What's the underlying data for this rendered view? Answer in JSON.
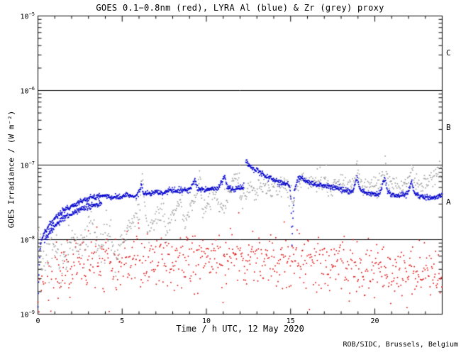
{
  "title": "GOES 0.1−0.8nm (red), LYRA Al (blue) & Zr (grey) proxy",
  "footer": "ROB/SIDC, Brussels, Belgium",
  "colors": {
    "goes_red": "#dd0000",
    "lyra_al_blue": "#0000cc",
    "lyra_zr_grey": "#9a9a9a",
    "frame": "#000000",
    "background": "#ffffff"
  },
  "chart_data": {
    "type": "scatter",
    "title": "GOES 0.1−0.8nm (red), LYRA Al (blue) & Zr (grey) proxy",
    "xlabel": "Time / h UTC, 12 May 2020",
    "ylabel": "GOES Irradiance / (W m⁻²)",
    "x_range_hours": [
      0,
      24
    ],
    "y_log10_range": [
      -9,
      -5
    ],
    "grid": false,
    "x_major_ticks": [
      0,
      5,
      10,
      15,
      20
    ],
    "x_minor_step_hours": 1,
    "y_tick_labels": [
      {
        "mantissa": "10",
        "exp": "−5",
        "log10": -5
      },
      {
        "mantissa": "10",
        "exp": "−6",
        "log10": -6
      },
      {
        "mantissa": "10",
        "exp": "−7",
        "log10": -7
      },
      {
        "mantissa": "10",
        "exp": "−8",
        "log10": -8
      },
      {
        "mantissa": "10",
        "exp": "−9",
        "log10": -9
      }
    ],
    "flare_class_lines_log10": [
      -6,
      -7,
      -8
    ],
    "flare_class_labels": [
      {
        "label": "C",
        "band_log10": [
          -6,
          -5
        ]
      },
      {
        "label": "B",
        "band_log10": [
          -7,
          -6
        ]
      },
      {
        "label": "A",
        "band_log10": [
          -8,
          -7
        ]
      }
    ],
    "series": [
      {
        "name": "GOES 0.1-0.8nm",
        "color": "#dd0000",
        "cadence_h": 0.0333,
        "sigma": 0.18,
        "outlier_prob": 0.05,
        "outlier_extra": 0.45,
        "thin": {
          "until": 1.0,
          "keep": 0.55
        },
        "seed": 11,
        "dot": 1.6,
        "anchors": [
          [
            0,
            -8.68
          ],
          [
            0.5,
            -8.55
          ],
          [
            1,
            -8.45
          ],
          [
            1.5,
            -8.4
          ],
          [
            2,
            -8.35
          ],
          [
            3,
            -8.3
          ],
          [
            4,
            -8.33
          ],
          [
            5,
            -8.3
          ],
          [
            6,
            -8.3
          ],
          [
            7,
            -8.28
          ],
          [
            8,
            -8.3
          ],
          [
            9,
            -8.26
          ],
          [
            10,
            -8.26
          ],
          [
            11,
            -8.28
          ],
          [
            12,
            -8.26
          ],
          [
            13,
            -8.3
          ],
          [
            14,
            -8.3
          ],
          [
            15,
            -8.3
          ],
          [
            16,
            -8.28
          ],
          [
            17,
            -8.31
          ],
          [
            18,
            -8.35
          ],
          [
            19,
            -8.36
          ],
          [
            20,
            -8.4
          ],
          [
            21,
            -8.43
          ],
          [
            22,
            -8.41
          ],
          [
            23,
            -8.43
          ],
          [
            24,
            -8.45
          ]
        ]
      },
      {
        "name": "LYRA Zr proxy",
        "color": "#9a9a9a",
        "cadence_h": 0.0333,
        "sigma": 0.07,
        "sigma_early": 0.13,
        "early_until": 5.0,
        "seed": 22,
        "dot": 1.6,
        "anchors": [
          [
            0,
            -7.9
          ],
          [
            0.2,
            -8.15
          ],
          [
            0.45,
            -8.3
          ],
          [
            0.7,
            -8.15
          ],
          [
            0.9,
            -8.0
          ],
          [
            1.1,
            -8.2
          ],
          [
            1.35,
            -8.35
          ],
          [
            1.6,
            -8.15
          ],
          [
            1.9,
            -8.0
          ],
          [
            2.2,
            -7.9
          ],
          [
            2.45,
            -8.2
          ],
          [
            2.7,
            -8.05
          ],
          [
            3,
            -7.9
          ],
          [
            3.3,
            -7.8
          ],
          [
            3.5,
            -8.15
          ],
          [
            3.8,
            -8.0
          ],
          [
            4.1,
            -7.78
          ],
          [
            4.35,
            -8.05
          ],
          [
            4.6,
            -8.3
          ],
          [
            4.9,
            -8.1
          ],
          [
            5.2,
            -7.95
          ],
          [
            5.5,
            -7.8
          ],
          [
            5.8,
            -7.68
          ],
          [
            6.05,
            -7.58
          ],
          [
            6.2,
            -7.12
          ],
          [
            6.35,
            -7.65
          ],
          [
            6.6,
            -7.9
          ],
          [
            6.9,
            -7.78
          ],
          [
            7.2,
            -7.65
          ],
          [
            7.45,
            -7.57
          ],
          [
            7.6,
            -7.88
          ],
          [
            7.9,
            -7.73
          ],
          [
            8.2,
            -7.6
          ],
          [
            8.5,
            -7.47
          ],
          [
            8.65,
            -7.78
          ],
          [
            8.95,
            -7.65
          ],
          [
            9.25,
            -7.45
          ],
          [
            9.5,
            -7.28
          ],
          [
            9.62,
            -7.1
          ],
          [
            9.75,
            -7.62
          ],
          [
            10,
            -7.52
          ],
          [
            10.3,
            -7.42
          ],
          [
            10.6,
            -7.33
          ],
          [
            10.8,
            -7.62
          ],
          [
            11.1,
            -7.5
          ],
          [
            11.4,
            -7.36
          ],
          [
            11.7,
            -7.22
          ],
          [
            11.9,
            -7.12
          ],
          [
            12.05,
            -7.48
          ],
          [
            12.3,
            -7.38
          ],
          [
            12.6,
            -7.3
          ],
          [
            12.9,
            -7.42
          ],
          [
            13.2,
            -7.33
          ],
          [
            13.5,
            -7.27
          ],
          [
            13.8,
            -7.36
          ],
          [
            14.1,
            -7.3
          ],
          [
            14.4,
            -7.24
          ],
          [
            14.7,
            -7.3
          ],
          [
            15,
            -7.4
          ],
          [
            15.12,
            -7.58
          ],
          [
            15.3,
            -7.32
          ],
          [
            15.55,
            -7.2
          ],
          [
            15.85,
            -7.16
          ],
          [
            16.15,
            -7.24
          ],
          [
            16.45,
            -7.2
          ],
          [
            16.75,
            -7.26
          ],
          [
            17.05,
            -7.22
          ],
          [
            17.35,
            -7.27
          ],
          [
            17.65,
            -7.24
          ],
          [
            17.95,
            -7.28
          ],
          [
            18.3,
            -7.26
          ],
          [
            18.6,
            -7.29
          ],
          [
            18.95,
            -7.03
          ],
          [
            19.15,
            -7.25
          ],
          [
            19.45,
            -7.29
          ],
          [
            19.75,
            -7.26
          ],
          [
            20.05,
            -7.28
          ],
          [
            20.35,
            -7.26
          ],
          [
            20.62,
            -6.98
          ],
          [
            20.8,
            -7.24
          ],
          [
            21.1,
            -7.27
          ],
          [
            21.4,
            -7.29
          ],
          [
            21.7,
            -7.26
          ],
          [
            22,
            -7.24
          ],
          [
            22.22,
            -6.96
          ],
          [
            22.4,
            -7.2
          ],
          [
            22.7,
            -7.26
          ],
          [
            23,
            -7.22
          ],
          [
            23.3,
            -7.18
          ],
          [
            23.65,
            -7.12
          ],
          [
            24,
            -7.06
          ]
        ]
      },
      {
        "name": "LYRA Al proxy",
        "color": "#0000cc",
        "cadence_h": 0.02,
        "sigma": 0.018,
        "double_track": {
          "from": 0.4,
          "to": 3.8,
          "offset": -0.1
        },
        "gaps": [
          [
            12.22,
            12.33
          ]
        ],
        "seed": 33,
        "dot": 1.7,
        "anchors": [
          [
            0,
            -8.9
          ],
          [
            0.05,
            -8.5
          ],
          [
            0.12,
            -8.15
          ],
          [
            0.2,
            -8.0
          ],
          [
            0.35,
            -7.93
          ],
          [
            0.5,
            -7.87
          ],
          [
            0.7,
            -7.8
          ],
          [
            1,
            -7.72
          ],
          [
            1.3,
            -7.65
          ],
          [
            1.6,
            -7.6
          ],
          [
            2,
            -7.55
          ],
          [
            2.4,
            -7.5
          ],
          [
            2.8,
            -7.47
          ],
          [
            3.2,
            -7.44
          ],
          [
            3.6,
            -7.42
          ],
          [
            4,
            -7.4
          ],
          [
            4.3,
            -7.44
          ],
          [
            4.7,
            -7.42
          ],
          [
            5,
            -7.43
          ],
          [
            5.3,
            -7.38
          ],
          [
            5.6,
            -7.43
          ],
          [
            5.9,
            -7.41
          ],
          [
            6.15,
            -7.27
          ],
          [
            6.3,
            -7.38
          ],
          [
            6.7,
            -7.39
          ],
          [
            7,
            -7.36
          ],
          [
            7.4,
            -7.38
          ],
          [
            7.8,
            -7.34
          ],
          [
            8.2,
            -7.35
          ],
          [
            8.6,
            -7.34
          ],
          [
            9,
            -7.33
          ],
          [
            9.3,
            -7.2
          ],
          [
            9.5,
            -7.32
          ],
          [
            9.9,
            -7.34
          ],
          [
            10.3,
            -7.32
          ],
          [
            10.7,
            -7.31
          ],
          [
            11.1,
            -7.15
          ],
          [
            11.25,
            -7.3
          ],
          [
            11.6,
            -7.33
          ],
          [
            12,
            -7.31
          ],
          [
            12.2,
            -7.29
          ],
          [
            12.35,
            -6.94
          ],
          [
            12.6,
            -7.01
          ],
          [
            13,
            -7.07
          ],
          [
            13.4,
            -7.13
          ],
          [
            13.8,
            -7.18
          ],
          [
            14.2,
            -7.22
          ],
          [
            14.6,
            -7.25
          ],
          [
            14.95,
            -7.27
          ],
          [
            15.02,
            -7.45
          ],
          [
            15.08,
            -8.05
          ],
          [
            15.15,
            -7.65
          ],
          [
            15.22,
            -7.35
          ],
          [
            15.4,
            -7.2
          ],
          [
            15.6,
            -7.16
          ],
          [
            15.9,
            -7.22
          ],
          [
            16.3,
            -7.25
          ],
          [
            16.7,
            -7.27
          ],
          [
            17.1,
            -7.29
          ],
          [
            17.5,
            -7.3
          ],
          [
            17.9,
            -7.32
          ],
          [
            18.3,
            -7.34
          ],
          [
            18.7,
            -7.36
          ],
          [
            18.95,
            -7.16
          ],
          [
            19.1,
            -7.32
          ],
          [
            19.5,
            -7.37
          ],
          [
            19.9,
            -7.39
          ],
          [
            20.3,
            -7.39
          ],
          [
            20.6,
            -7.16
          ],
          [
            20.75,
            -7.35
          ],
          [
            21.1,
            -7.4
          ],
          [
            21.5,
            -7.41
          ],
          [
            21.9,
            -7.39
          ],
          [
            22.2,
            -7.22
          ],
          [
            22.35,
            -7.38
          ],
          [
            22.7,
            -7.42
          ],
          [
            23.1,
            -7.43
          ],
          [
            23.5,
            -7.44
          ],
          [
            24,
            -7.41
          ]
        ]
      }
    ]
  }
}
